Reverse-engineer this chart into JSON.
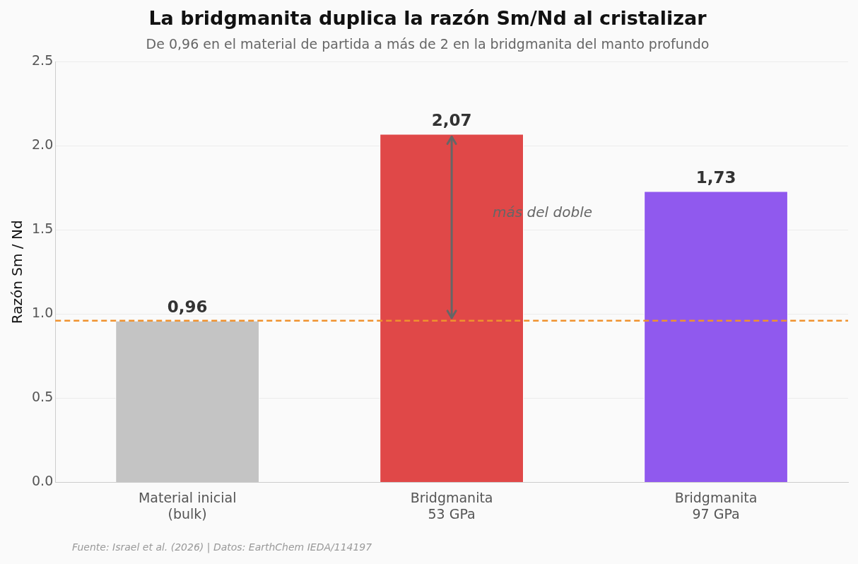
{
  "chart_data": {
    "type": "bar",
    "title": "La bridgmanita duplica la razón Sm/Nd al cristalizar",
    "subtitle": "De 0,96 en el material de partida a más de 2 en la bridgmanita del manto profundo",
    "ylabel": "Razón Sm / Nd",
    "categories": [
      "Material inicial\n(bulk)",
      "Bridgmanita\n53 GPa",
      "Bridgmanita\n97 GPa"
    ],
    "values": [
      0.96,
      2.07,
      1.73
    ],
    "value_labels": [
      "0,96",
      "2,07",
      "1,73"
    ],
    "colors": [
      "#c4c4c4",
      "#e04848",
      "#9059ee"
    ],
    "ylim": [
      0,
      2.5
    ],
    "yticks": [
      {
        "value": 0,
        "label": "0.0"
      },
      {
        "value": 0.5,
        "label": "0.5"
      },
      {
        "value": 1,
        "label": "1.0"
      },
      {
        "value": 1.5,
        "label": "1.5"
      },
      {
        "value": 2,
        "label": "2.0"
      },
      {
        "value": 2.5,
        "label": "2.5"
      }
    ],
    "grid": "y",
    "legend": false,
    "ref_lines": [
      {
        "axis": "y",
        "value": 0.96,
        "color": "#f0922e",
        "line_style": "dashed"
      }
    ],
    "annotations": [
      "más del doble",
      "Fuente: Israel et al. (2026) | Datos: EarthChem IEDA/114197"
    ]
  }
}
